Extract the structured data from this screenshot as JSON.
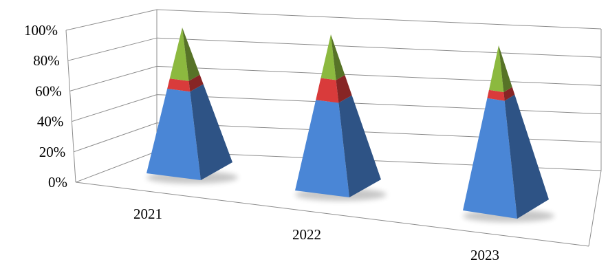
{
  "chart_data": {
    "type": "bar",
    "style": "3d-stacked-percent-pyramid",
    "title": "",
    "xlabel": "",
    "ylabel": "",
    "ylim": [
      0,
      100
    ],
    "y_ticks": [
      "0%",
      "20%",
      "40%",
      "60%",
      "80%",
      "100%"
    ],
    "grid": true,
    "legend": "none",
    "categories": [
      "2021",
      "2022",
      "2023"
    ],
    "series": [
      {
        "values": [
          58,
          58,
          68
        ],
        "color": "#4a86d6"
      },
      {
        "values": [
          7,
          14,
          5
        ],
        "color": "#d93b3b"
      },
      {
        "values": [
          35,
          28,
          27
        ],
        "color": "#8cb93f"
      }
    ]
  }
}
